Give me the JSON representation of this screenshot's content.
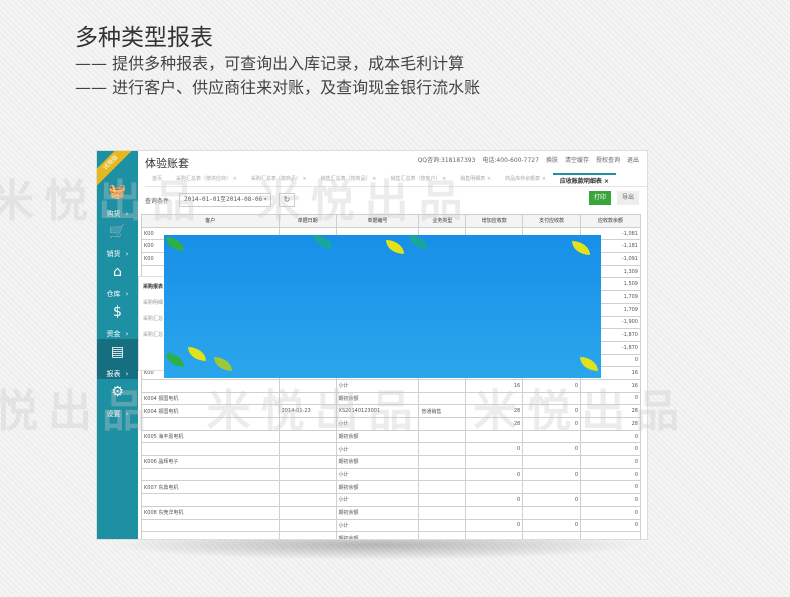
{
  "promo": {
    "title": "多种类型报表",
    "lines": [
      "—— 提供多种报表，可查询出入库记录，成本毛利计算",
      "—— 进行客户、供应商往来对账，及查询现金银行流水账"
    ],
    "watermark": "米悦出品"
  },
  "app": {
    "title": "体验账套",
    "badge": "试用版",
    "header_links": [
      "QQ咨询:318187393",
      "电话:400-600-7727",
      "换肤",
      "清空缓存",
      "授权查询",
      "退出"
    ],
    "sidebar": [
      {
        "label": "购货",
        "icon": "basket-icon"
      },
      {
        "label": "销货",
        "icon": "cart-icon"
      },
      {
        "label": "仓库",
        "icon": "warehouse-icon"
      },
      {
        "label": "资金",
        "icon": "dollar-icon"
      },
      {
        "label": "报表",
        "icon": "report-icon",
        "active": true
      },
      {
        "label": "设置",
        "icon": "gear-icon"
      }
    ],
    "tabs": [
      "首页",
      "采购汇总表（按供应商）",
      "采购汇总表（按商品）",
      "销售汇总表（按商品）",
      "销售汇总表（按客户）",
      "销售明细表",
      "商品库存余额表",
      "应收账款明细表"
    ],
    "popup_items": [
      "采购报表",
      "采购明细",
      "采购汇总",
      "采购汇总"
    ],
    "toolbar": {
      "query_label": "查询条件",
      "date_range": "2014-01-01至2014-08-06",
      "print": "打印",
      "export": "导出"
    },
    "table": {
      "columns": [
        "客户",
        "单据日期",
        "单据编号",
        "业务类型",
        "增加应收款",
        "支付应收款",
        "应收款余额"
      ],
      "rows": [
        [
          "K00",
          "",
          "",
          "",
          "",
          "",
          "-1,081"
        ],
        [
          "K00",
          "",
          "",
          "",
          "",
          "",
          "-1,181"
        ],
        [
          "K00",
          "",
          "",
          "",
          "",
          "",
          "-1,091"
        ],
        [
          "",
          "",
          "",
          "",
          "",
          "",
          "1,309"
        ],
        [
          "",
          "",
          "",
          "",
          "",
          "",
          "1,509"
        ],
        [
          "",
          "",
          "",
          "",
          "",
          "",
          "1,709"
        ],
        [
          "",
          "",
          "",
          "",
          "",
          "",
          "1,709"
        ],
        [
          "",
          "",
          "",
          "",
          "",
          "",
          "-1,900"
        ],
        [
          "",
          "",
          "",
          "",
          "",
          "",
          "-1,870"
        ],
        [
          "",
          "",
          "",
          "",
          "",
          "",
          "-1,870"
        ],
        [
          "",
          "",
          "",
          "",
          "",
          "",
          "0"
        ],
        [
          "K00",
          "",
          "",
          "",
          "",
          "",
          "16"
        ],
        [
          "",
          "",
          "小计",
          "",
          "16",
          "0",
          "16"
        ],
        [
          "K004 振国电机",
          "",
          "期初余额",
          "",
          "",
          "",
          "0"
        ],
        [
          "K004 振国电机",
          "2014-01-23",
          "XS20140123001",
          "普通销售",
          "28",
          "0",
          "28"
        ],
        [
          "",
          "",
          "小计",
          "",
          "28",
          "0",
          "28"
        ],
        [
          "K005 海丰嘉电机",
          "",
          "期初余额",
          "",
          "",
          "",
          "0"
        ],
        [
          "",
          "",
          "小计",
          "",
          "0",
          "0",
          "0"
        ],
        [
          "K006 晶辉电子",
          "",
          "期初余额",
          "",
          "",
          "",
          "0"
        ],
        [
          "",
          "",
          "小计",
          "",
          "0",
          "0",
          "0"
        ],
        [
          "K007 东鼎电机",
          "",
          "期初余额",
          "",
          "",
          "",
          "0"
        ],
        [
          "",
          "",
          "小计",
          "",
          "0",
          "0",
          "0"
        ],
        [
          "K008 东莞洋电机",
          "",
          "期初余额",
          "",
          "",
          "",
          "0"
        ],
        [
          "",
          "",
          "小计",
          "",
          "0",
          "0",
          "0"
        ],
        [
          "",
          "",
          "期初余额",
          "",
          "",
          "",
          ""
        ]
      ]
    }
  }
}
